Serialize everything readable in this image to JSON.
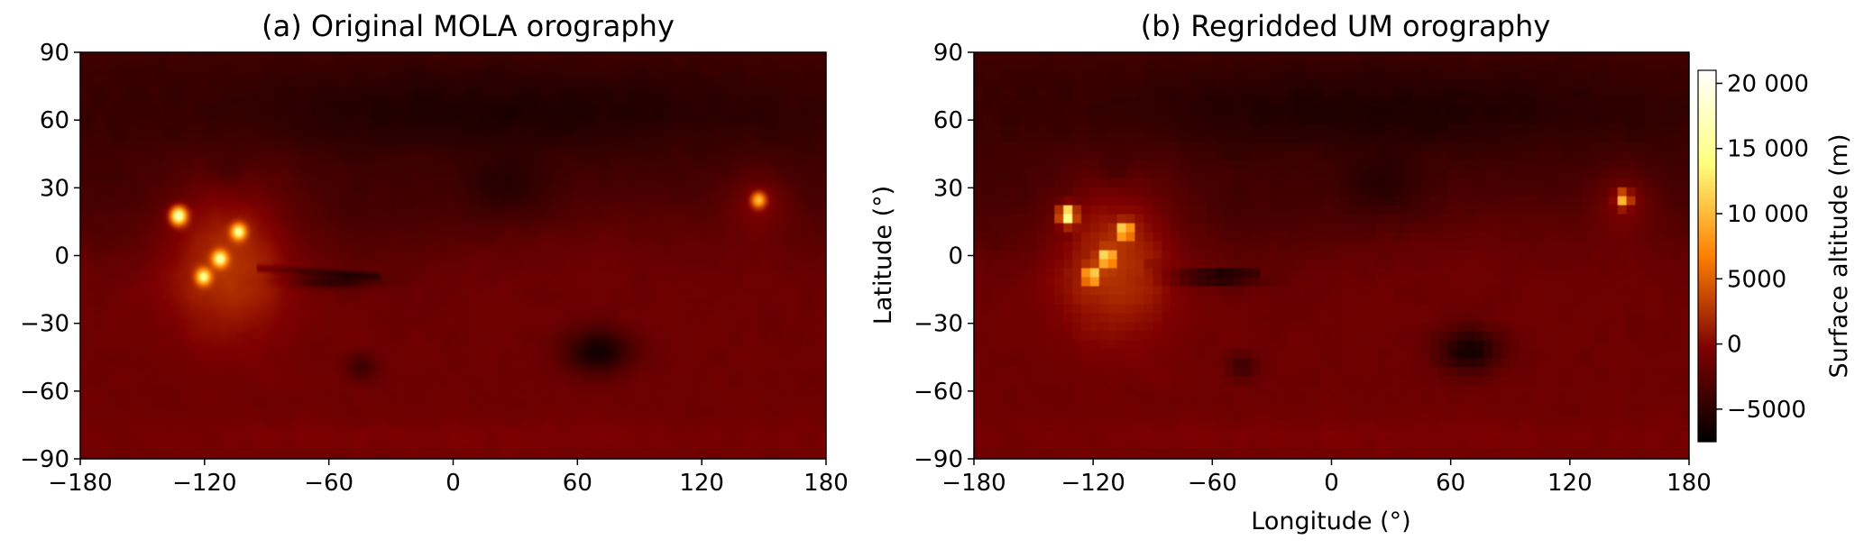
{
  "chart_data": [
    {
      "type": "heatmap",
      "title": "(a) Original MOLA orography",
      "xlabel": "",
      "ylabel": "",
      "xlim": [
        -180,
        180
      ],
      "ylim": [
        -90,
        90
      ],
      "xticks": [
        "−180",
        "−120",
        "−60",
        "0",
        "60",
        "120",
        "180"
      ],
      "yticks": [
        "90",
        "60",
        "30",
        "0",
        "−30",
        "−60",
        "−90"
      ],
      "grid": false,
      "resolution": "high",
      "features": [
        {
          "lon": -133,
          "lat": 18,
          "value": 21000
        },
        {
          "lon": -113,
          "lat": -1,
          "value": 17000
        },
        {
          "lon": -104,
          "lat": 11,
          "value": 17000
        },
        {
          "lon": -121,
          "lat": -9,
          "value": 16000
        },
        {
          "lon": -108,
          "lat": 38,
          "value": 1500
        },
        {
          "lon": 147,
          "lat": 25,
          "value": 14000
        },
        {
          "lon": 70,
          "lat": -42,
          "value": -7500
        },
        {
          "lon": -45,
          "lat": -49,
          "value": -5000
        },
        {
          "lon": -60,
          "lat": -11,
          "value": -6000
        },
        {
          "lon": 25,
          "lat": 30,
          "value": -4000
        }
      ]
    },
    {
      "type": "heatmap",
      "title": "(b) Regridded UM orography",
      "xlabel": "Longitude (°)",
      "ylabel": "Latitude (°)",
      "xlim": [
        -180,
        180
      ],
      "ylim": [
        -90,
        90
      ],
      "xticks": [
        "−180",
        "−120",
        "−60",
        "0",
        "60",
        "120",
        "180"
      ],
      "yticks": [
        "90",
        "60",
        "30",
        "0",
        "−30",
        "−60",
        "−90"
      ],
      "grid": false,
      "resolution": "coarse",
      "colorbar": {
        "label": "Surface altitude (m)",
        "vmin": -7500,
        "vmax": 21000,
        "ticks": [
          20000,
          15000,
          10000,
          5000,
          0,
          -5000
        ],
        "tick_labels": [
          "20 000",
          "15 000",
          "10 000",
          "5000",
          "0",
          "−5000"
        ],
        "colormap": "afmhot",
        "stops": [
          "#000000",
          "#7f0000",
          "#ff7f00",
          "#ffff7f",
          "#ffffff"
        ]
      }
    }
  ]
}
